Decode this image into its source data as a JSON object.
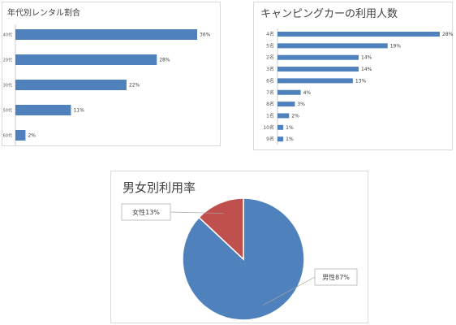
{
  "chart_data": [
    {
      "type": "bar",
      "orientation": "horizontal",
      "title": "年代別レンタル割合",
      "categories": [
        "40代",
        "20代",
        "30代",
        "50代",
        "60代"
      ],
      "values": [
        36,
        28,
        22,
        11,
        2
      ],
      "value_labels": [
        "36%",
        "28%",
        "22%",
        "11%",
        "2%"
      ],
      "xlim": [
        0,
        36
      ],
      "grid": false,
      "legend": "none",
      "colors": {
        "bar": "#4f81bd"
      }
    },
    {
      "type": "bar",
      "orientation": "horizontal",
      "title": "キャンピングカーの利用人数",
      "categories": [
        "4名",
        "5名",
        "2名",
        "3名",
        "6名",
        "7名",
        "8名",
        "1名",
        "10名",
        "9名"
      ],
      "values": [
        28,
        19,
        14,
        14,
        13,
        4,
        3,
        2,
        1,
        1
      ],
      "value_labels": [
        "28%",
        "19%",
        "14%",
        "14%",
        "13%",
        "4%",
        "3%",
        "2%",
        "1%",
        "1%"
      ],
      "xlim": [
        0,
        28
      ],
      "grid": false,
      "legend": "none",
      "colors": {
        "bar": "#4f81bd"
      }
    },
    {
      "type": "pie",
      "title": "男女別利用率",
      "slices": [
        {
          "label": "男性87%",
          "value": 87,
          "color": "#4f81bd"
        },
        {
          "label": "女性13%",
          "value": 13,
          "color": "#c0504d"
        }
      ],
      "legend": "none",
      "label_style": "callout"
    }
  ]
}
